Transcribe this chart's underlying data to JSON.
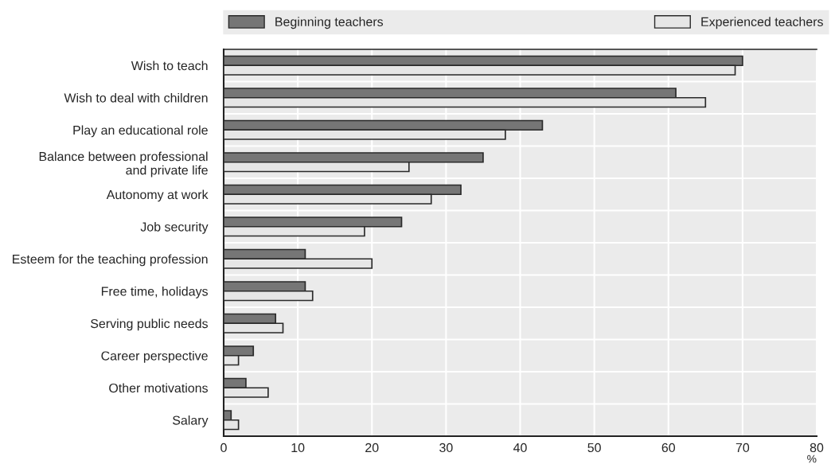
{
  "chart_data": {
    "type": "bar",
    "orientation": "horizontal",
    "xlabel": "%",
    "categories": [
      "Wish to teach",
      "Wish to deal with children",
      "Play an educational role",
      "Balance between professional\nand private life",
      "Autonomy at work",
      "Job security",
      "Esteem for the teaching profession",
      "Free time, holidays",
      "Serving public needs",
      "Career perspective",
      "Other motivations",
      "Salary"
    ],
    "series": [
      {
        "name": "Beginning teachers",
        "color": "#767676",
        "values": [
          70,
          61,
          43,
          35,
          32,
          24,
          11,
          11,
          7,
          4,
          3,
          1
        ]
      },
      {
        "name": "Experienced teachers",
        "color": "#e6e6e6",
        "values": [
          69,
          65,
          38,
          25,
          28,
          19,
          20,
          12,
          8,
          2,
          6,
          2
        ]
      }
    ],
    "xlim": [
      0,
      80
    ],
    "xticks": [
      0,
      10,
      20,
      30,
      40,
      50,
      60,
      70,
      80
    ],
    "grid": true,
    "legend": "top"
  }
}
